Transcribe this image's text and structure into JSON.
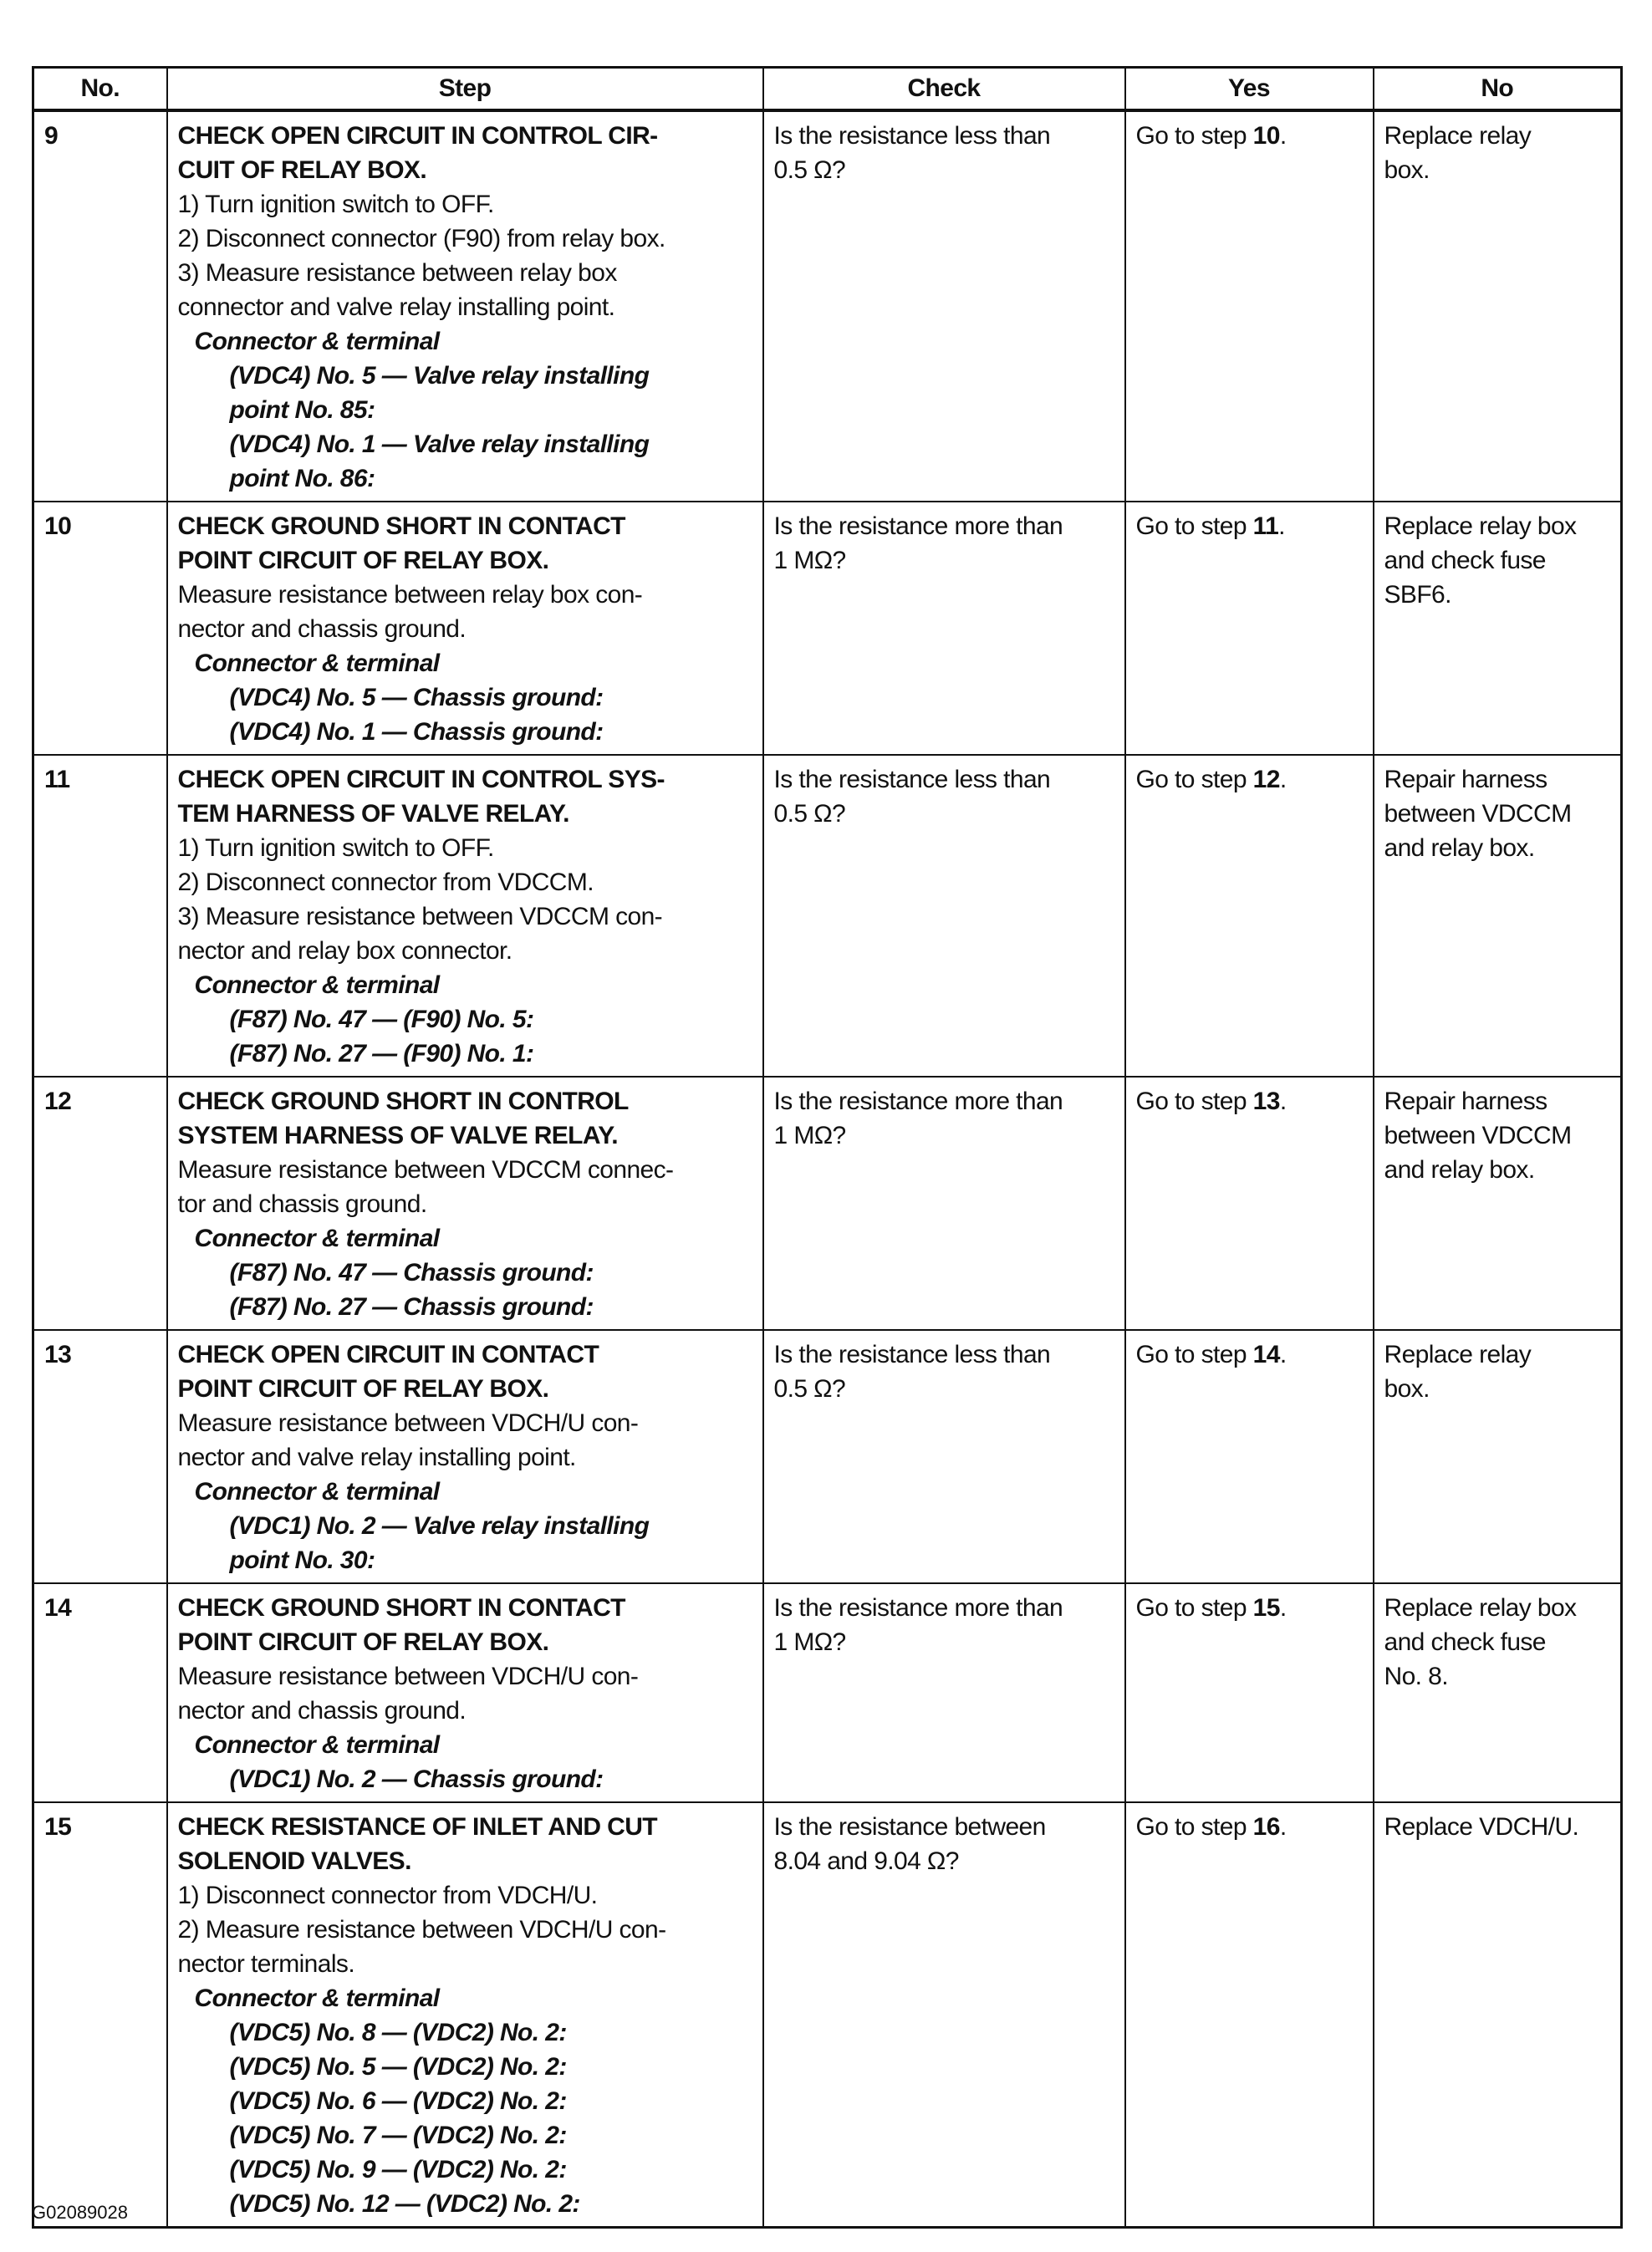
{
  "headers": {
    "no": "No.",
    "step": "Step",
    "check": "Check",
    "yes": "Yes",
    "no_col": "No"
  },
  "rows": [
    {
      "no": "9",
      "title_lines": [
        "CHECK OPEN CIRCUIT IN CONTROL CIR-",
        "CUIT OF RELAY BOX."
      ],
      "body_lines": [
        "1) Turn ignition switch to OFF.",
        "2) Disconnect connector (F90) from relay box.",
        "3) Measure resistance between relay box",
        "connector and valve relay installing point."
      ],
      "connector_label": "Connector & terminal",
      "terminal_lines": [
        "(VDC4) No. 5 — Valve relay installing",
        "point No. 85:",
        "(VDC4) No. 1 — Valve relay installing",
        "point No. 86:"
      ],
      "check_lines": [
        "Is the resistance less than",
        "0.5 Ω?"
      ],
      "yes_prefix": "Go to step ",
      "yes_step": "10",
      "yes_suffix": ".",
      "no_lines": [
        "Replace relay",
        "box."
      ]
    },
    {
      "no": "10",
      "title_lines": [
        "CHECK GROUND SHORT IN CONTACT",
        "POINT CIRCUIT OF RELAY BOX."
      ],
      "body_lines": [
        "Measure resistance between relay box con-",
        "nector and chassis ground."
      ],
      "connector_label": "Connector & terminal",
      "terminal_lines": [
        "(VDC4) No. 5 — Chassis ground:",
        "(VDC4) No. 1 — Chassis ground:"
      ],
      "check_lines": [
        "Is the resistance more than",
        "1 MΩ?"
      ],
      "yes_prefix": "Go to step ",
      "yes_step": "11",
      "yes_suffix": ".",
      "no_lines": [
        "Replace relay box",
        "and check fuse",
        "SBF6."
      ]
    },
    {
      "no": "11",
      "title_lines": [
        "CHECK OPEN CIRCUIT IN CONTROL SYS-",
        "TEM HARNESS OF VALVE RELAY."
      ],
      "body_lines": [
        "1) Turn ignition switch to OFF.",
        "2) Disconnect connector from VDCCM.",
        "3) Measure resistance between VDCCM con-",
        "nector and relay box connector."
      ],
      "connector_label": "Connector & terminal",
      "terminal_lines": [
        "(F87) No. 47 — (F90) No. 5:",
        "(F87) No. 27 — (F90) No. 1:"
      ],
      "check_lines": [
        "Is the resistance less than",
        "0.5 Ω?"
      ],
      "yes_prefix": "Go to step ",
      "yes_step": "12",
      "yes_suffix": ".",
      "no_lines": [
        "Repair harness",
        "between VDCCM",
        "and relay box."
      ]
    },
    {
      "no": "12",
      "title_lines": [
        "CHECK GROUND SHORT IN CONTROL",
        "SYSTEM HARNESS OF VALVE RELAY."
      ],
      "body_lines": [
        "Measure resistance between VDCCM connec-",
        "tor and chassis ground."
      ],
      "connector_label": "Connector & terminal",
      "terminal_lines": [
        "(F87) No. 47 — Chassis ground:",
        "(F87) No. 27 — Chassis ground:"
      ],
      "check_lines": [
        "Is the resistance more than",
        "1 MΩ?"
      ],
      "yes_prefix": "Go to step ",
      "yes_step": "13",
      "yes_suffix": ".",
      "no_lines": [
        "Repair harness",
        "between VDCCM",
        "and relay box."
      ]
    },
    {
      "no": "13",
      "title_lines": [
        "CHECK OPEN CIRCUIT IN CONTACT",
        "POINT CIRCUIT OF RELAY BOX."
      ],
      "body_lines": [
        "Measure resistance between VDCH/U con-",
        "nector and valve relay installing point."
      ],
      "connector_label": "Connector & terminal",
      "terminal_lines": [
        "(VDC1) No. 2 — Valve relay installing",
        "point No. 30:"
      ],
      "check_lines": [
        "Is the resistance less than",
        "0.5 Ω?"
      ],
      "yes_prefix": "Go to step ",
      "yes_step": "14",
      "yes_suffix": ".",
      "no_lines": [
        "Replace relay",
        "box."
      ]
    },
    {
      "no": "14",
      "title_lines": [
        "CHECK GROUND SHORT IN CONTACT",
        "POINT CIRCUIT OF RELAY BOX."
      ],
      "body_lines": [
        "Measure resistance between VDCH/U con-",
        "nector and chassis ground."
      ],
      "connector_label": "Connector & terminal",
      "terminal_lines": [
        "(VDC1) No. 2 — Chassis ground:"
      ],
      "check_lines": [
        "Is the resistance more than",
        "1 MΩ?"
      ],
      "yes_prefix": "Go to step ",
      "yes_step": "15",
      "yes_suffix": ".",
      "no_lines": [
        "Replace relay box",
        "and check fuse",
        "No. 8."
      ]
    },
    {
      "no": "15",
      "title_lines": [
        "CHECK RESISTANCE OF INLET AND CUT",
        "SOLENOID VALVES."
      ],
      "body_lines": [
        "1) Disconnect connector from VDCH/U.",
        "2) Measure resistance between VDCH/U con-",
        "nector terminals."
      ],
      "connector_label": "Connector & terminal",
      "terminal_lines": [
        "(VDC5) No. 8 — (VDC2) No. 2:",
        "(VDC5) No. 5 — (VDC2) No. 2:",
        "(VDC5) No. 6 — (VDC2) No. 2:",
        "(VDC5) No. 7 — (VDC2) No. 2:",
        "(VDC5) No. 9 — (VDC2) No. 2:",
        "(VDC5) No. 12 — (VDC2) No. 2:"
      ],
      "check_lines": [
        "Is the resistance between",
        "8.04 and 9.04 Ω?"
      ],
      "yes_prefix": "Go to step ",
      "yes_step": "16",
      "yes_suffix": ".",
      "no_lines": [
        "Replace VDCH/U."
      ]
    }
  ],
  "footer_code": "G02089028"
}
